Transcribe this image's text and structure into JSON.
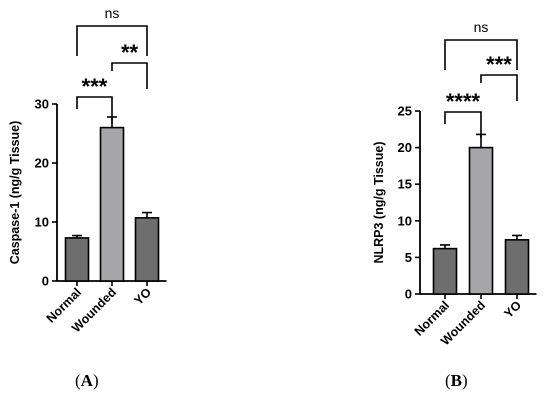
{
  "chart_data": [
    {
      "type": "bar",
      "panel": "(A)",
      "categories": [
        "Normal",
        "Wounded",
        "YO"
      ],
      "values": [
        7.3,
        26.0,
        10.7
      ],
      "errors": [
        0.4,
        1.8,
        0.9
      ],
      "bar_colors": [
        "#6e6e6e",
        "#a6a6a8",
        "#6e6e6e"
      ],
      "ylabel": "Caspase-1 (ng/g Tissue)",
      "ylim": [
        0,
        30
      ],
      "yticks": [
        0,
        10,
        20,
        30
      ],
      "grid": false,
      "significance": [
        {
          "from": "Normal",
          "to": "Wounded",
          "label": "***"
        },
        {
          "from": "Wounded",
          "to": "YO",
          "label": "**"
        },
        {
          "from": "Normal",
          "to": "YO",
          "label": "ns"
        }
      ]
    },
    {
      "type": "bar",
      "panel": "(B)",
      "categories": [
        "Normal",
        "Wounded",
        "YO"
      ],
      "values": [
        6.2,
        20.0,
        7.4
      ],
      "errors": [
        0.5,
        1.8,
        0.6
      ],
      "bar_colors": [
        "#6e6e6e",
        "#a6a6a8",
        "#6e6e6e"
      ],
      "ylabel": "NLRP3 (ng/g Tissue)",
      "ylim": [
        0,
        25
      ],
      "yticks": [
        0,
        5,
        10,
        15,
        20,
        25
      ],
      "grid": false,
      "significance": [
        {
          "from": "Normal",
          "to": "Wounded",
          "label": "****"
        },
        {
          "from": "Wounded",
          "to": "YO",
          "label": "***"
        },
        {
          "from": "Normal",
          "to": "YO",
          "label": "ns"
        }
      ]
    }
  ],
  "panel_labels": {
    "a": "A",
    "b": "B"
  }
}
